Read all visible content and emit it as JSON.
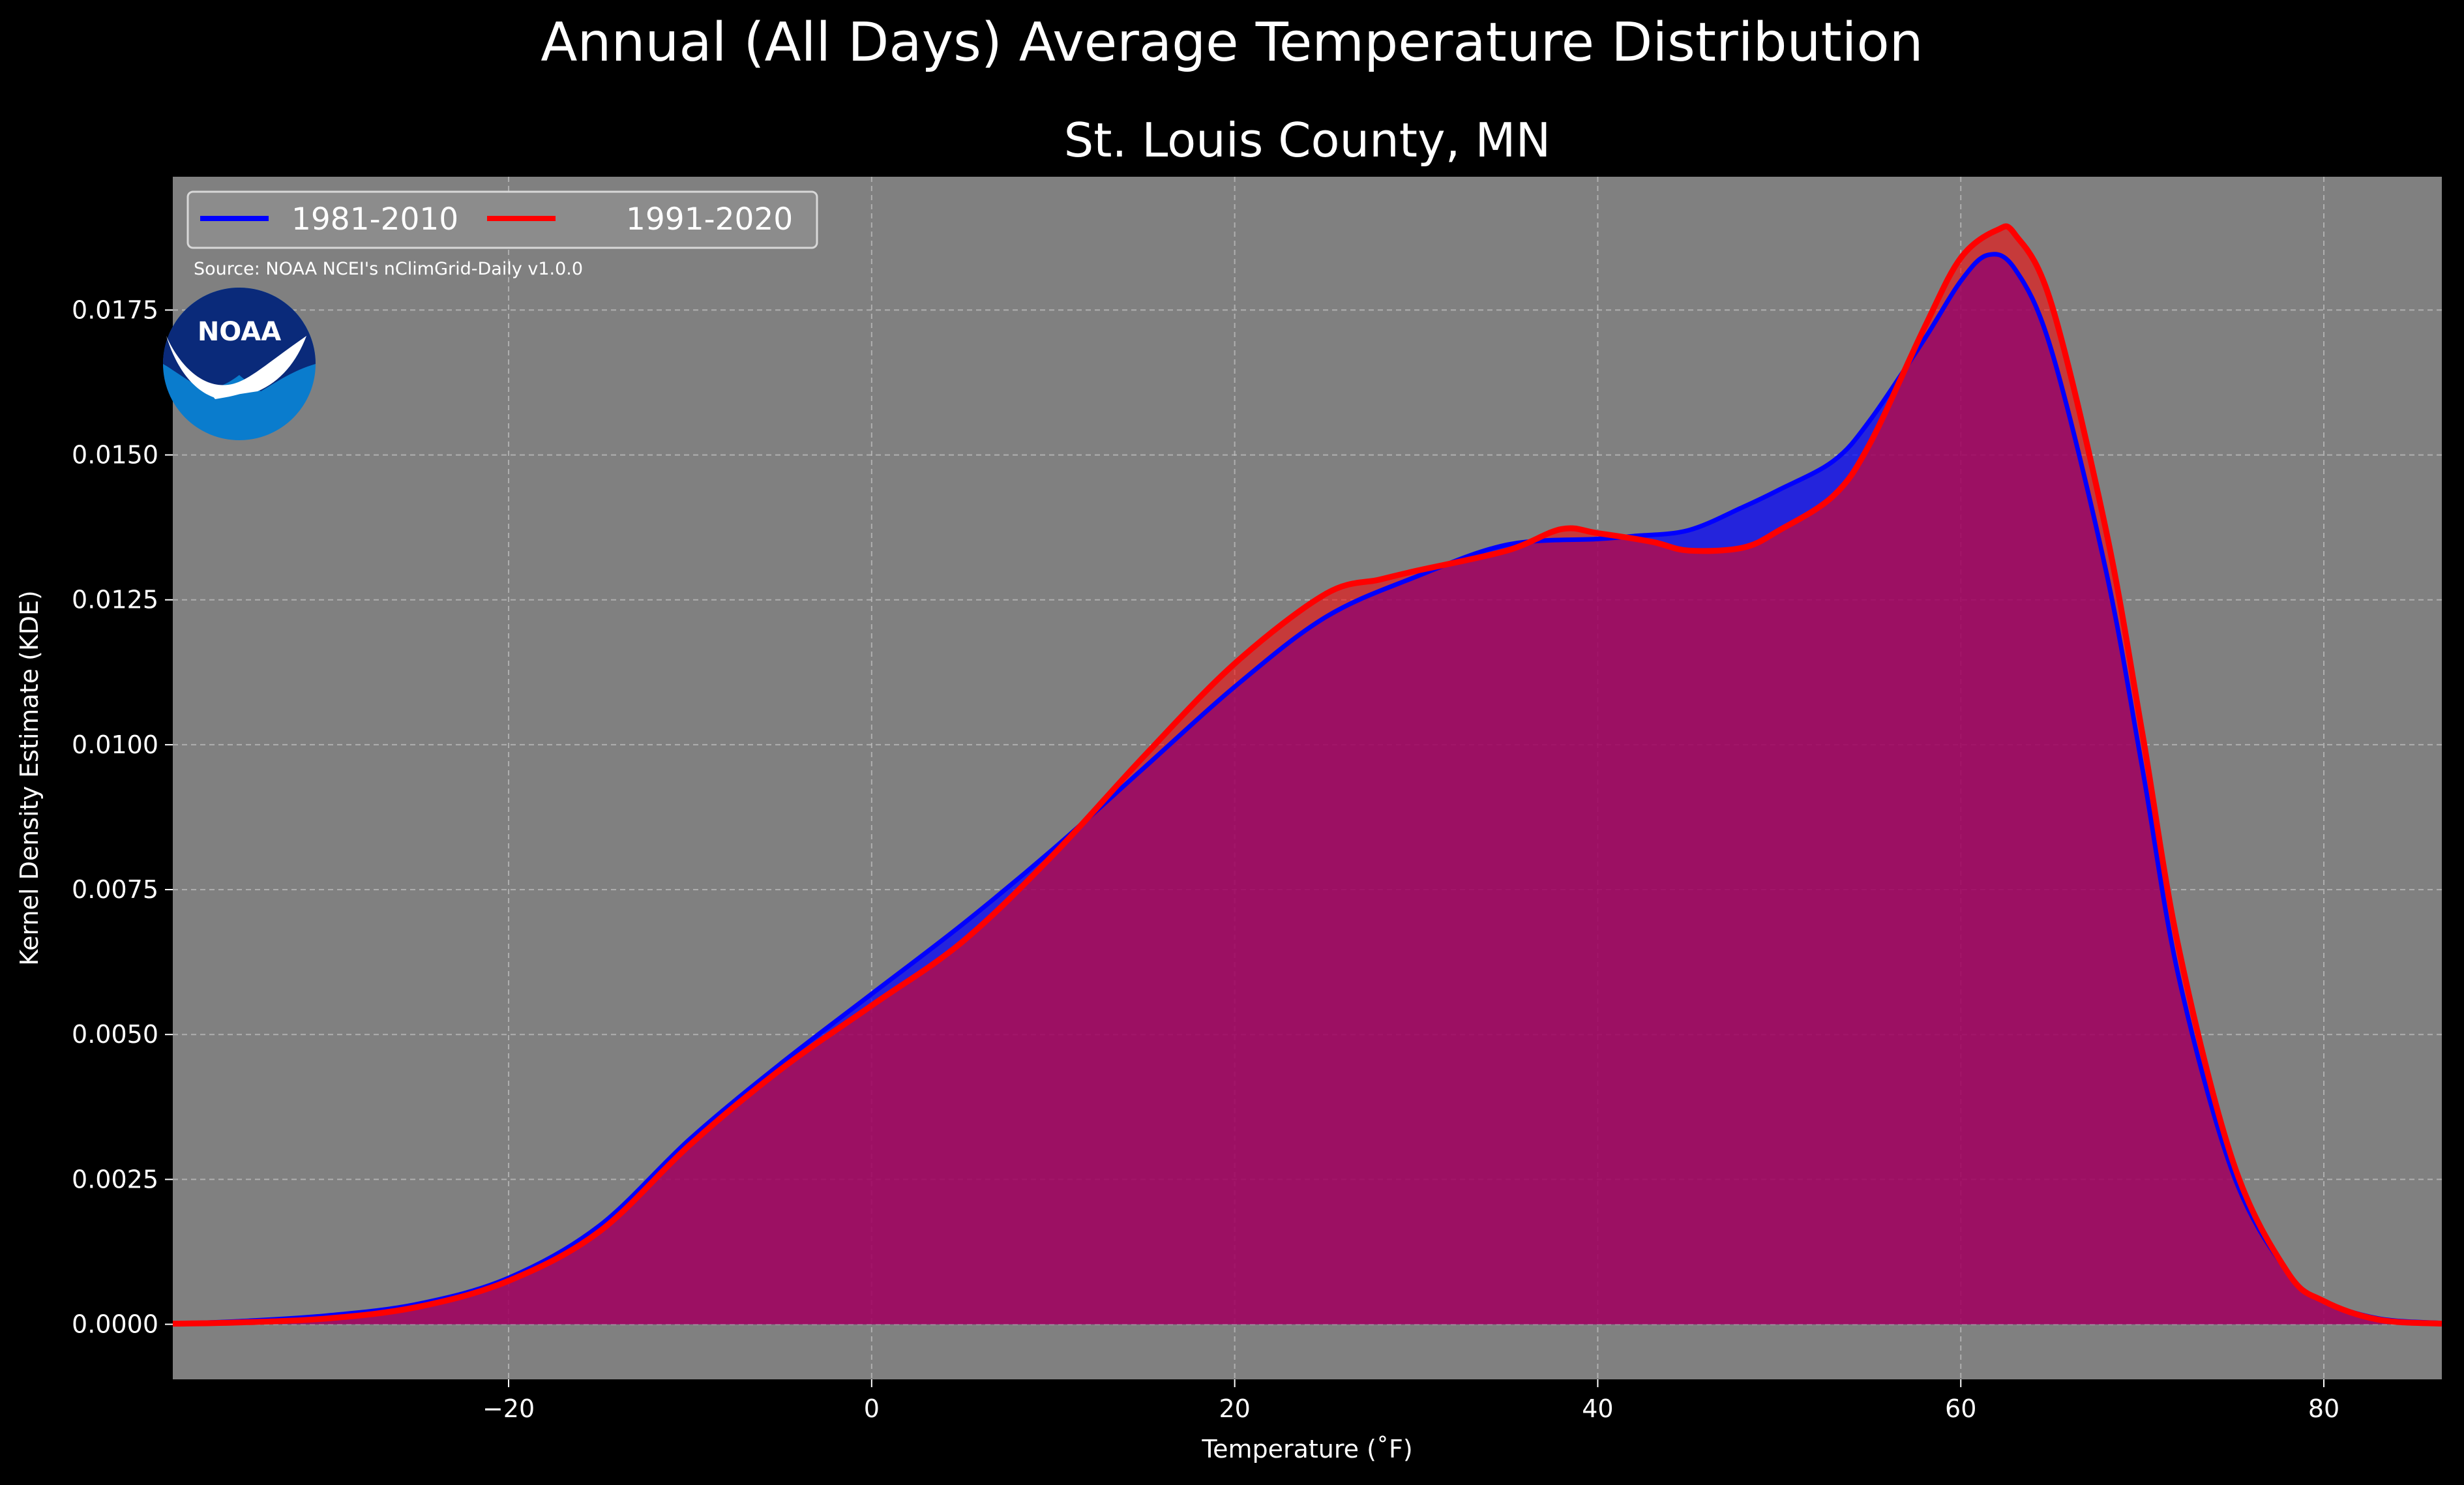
{
  "title": "Annual (All Days) Average Temperature Distribution",
  "subtitle": "St. Louis County, MN",
  "source_note": "Source: NOAA NCEI's nClimGrid-Daily v1.0.0",
  "logo_text": "NOAA",
  "colors": {
    "background": "#000000",
    "plot_background": "#808080",
    "series_1981_2010": "#0000ff",
    "series_1991_2020": "#ff0000",
    "overlap_fill": "#9e1e5c",
    "logo_dark": "#0a2a7a",
    "logo_light": "#0a7ccd"
  },
  "chart_data": {
    "type": "area",
    "title": "Annual (All Days) Average Temperature Distribution",
    "subtitle": "St. Louis County, MN",
    "xlabel": "Temperature ($^\\circ$F)",
    "xlabel_display": "Temperature (˚F)",
    "ylabel": "Kernel Density Estimate (KDE)",
    "xlim": [
      -38.5,
      86.5
    ],
    "ylim": [
      -0.00095,
      0.0198
    ],
    "x_ticks": [
      -20,
      0,
      20,
      40,
      60,
      80
    ],
    "x_tick_labels": [
      "−20",
      "0",
      "20",
      "40",
      "60",
      "80"
    ],
    "y_ticks": [
      0.0,
      0.0025,
      0.005,
      0.0075,
      0.01,
      0.0125,
      0.015,
      0.0175
    ],
    "y_tick_labels": [
      "0.0000",
      "0.0025",
      "0.0050",
      "0.0075",
      "0.0100",
      "0.0125",
      "0.0150",
      "0.0175"
    ],
    "grid": true,
    "legend": {
      "placement": "top-left",
      "columns": 2
    },
    "series": [
      {
        "name": "1981-2010",
        "color": "#0000ff",
        "x": [
          -38.5,
          -35,
          -30,
          -25,
          -20,
          -15,
          -10,
          -5,
          0,
          5,
          10,
          15,
          20,
          25,
          30,
          35,
          40,
          42,
          45,
          48,
          50,
          53,
          55,
          58,
          60,
          61.5,
          63,
          65,
          68,
          70,
          72,
          75,
          78,
          80,
          83,
          86.5
        ],
        "values": [
          1e-05,
          5e-05,
          0.00015,
          0.00035,
          0.0008,
          0.0017,
          0.0032,
          0.0045,
          0.0057,
          0.0069,
          0.0082,
          0.0096,
          0.011,
          0.0122,
          0.0129,
          0.01345,
          0.01355,
          0.0136,
          0.0137,
          0.0141,
          0.0144,
          0.0149,
          0.0156,
          0.017,
          0.018,
          0.01845,
          0.0182,
          0.0168,
          0.013,
          0.0096,
          0.006,
          0.0026,
          0.0009,
          0.0004,
          0.0001,
          2e-05
        ]
      },
      {
        "name": "1991-2020",
        "color": "#ff0000",
        "x": [
          -38.5,
          -35,
          -30,
          -25,
          -20,
          -15,
          -10,
          -5,
          0,
          5,
          10,
          15,
          20,
          25,
          28,
          30,
          35,
          38,
          40,
          43,
          45,
          48,
          50,
          53,
          55,
          58,
          60,
          62,
          63,
          65,
          68,
          70,
          72,
          75,
          78,
          80,
          83,
          86.5
        ],
        "values": [
          1e-05,
          3e-05,
          0.0001,
          0.0003,
          0.00075,
          0.0016,
          0.0031,
          0.0044,
          0.0055,
          0.0066,
          0.0081,
          0.0098,
          0.0114,
          0.0126,
          0.01285,
          0.013,
          0.01335,
          0.01372,
          0.01365,
          0.0135,
          0.01335,
          0.0134,
          0.0137,
          0.0143,
          0.0152,
          0.0172,
          0.0184,
          0.01888,
          0.0188,
          0.0176,
          0.0137,
          0.0102,
          0.0065,
          0.0028,
          0.0009,
          0.0004,
          8e-05,
          1e-05
        ]
      }
    ]
  }
}
